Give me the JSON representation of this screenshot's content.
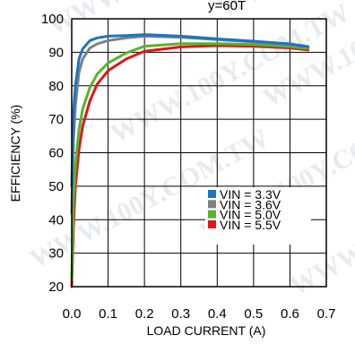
{
  "chart_data": {
    "type": "line",
    "title_fragment": "y=60T",
    "xlabel": "LOAD CURRENT (A)",
    "ylabel": "EFFICIENCY (%)",
    "xlim": [
      0.0,
      0.7
    ],
    "ylim": [
      20,
      100
    ],
    "x_ticks": [
      "0.0",
      "0.1",
      "0.2",
      "0.3",
      "0.4",
      "0.5",
      "0.6",
      "0.7"
    ],
    "y_ticks": [
      "20",
      "30",
      "40",
      "50",
      "60",
      "70",
      "80",
      "90",
      "100"
    ],
    "grid": true,
    "legend_position": "lower-right",
    "watermark": "WWW.100Y.COM.TW",
    "series": [
      {
        "name": "VIN = 3.3V",
        "color": "#1a75c2",
        "x": [
          0.0,
          0.005,
          0.01,
          0.02,
          0.03,
          0.05,
          0.07,
          0.1,
          0.15,
          0.2,
          0.3,
          0.4,
          0.5,
          0.6,
          0.65
        ],
        "y": [
          50,
          72,
          80,
          88,
          91,
          93.5,
          94.3,
          94.8,
          95.0,
          95.3,
          94.8,
          94.0,
          93.3,
          92.5,
          91.7
        ]
      },
      {
        "name": "VIN = 3.6V",
        "color": "#808080",
        "x": [
          0.0,
          0.005,
          0.01,
          0.02,
          0.03,
          0.05,
          0.07,
          0.1,
          0.15,
          0.2,
          0.3,
          0.4,
          0.5,
          0.6,
          0.65
        ],
        "y": [
          42,
          64,
          74,
          84,
          88,
          91.3,
          92.5,
          93.5,
          94.3,
          94.8,
          94.5,
          93.8,
          93.1,
          92.3,
          91.5
        ]
      },
      {
        "name": "VIN = 5.0V",
        "color": "#55b52a",
        "x": [
          0.0,
          0.005,
          0.01,
          0.02,
          0.03,
          0.05,
          0.07,
          0.1,
          0.15,
          0.2,
          0.3,
          0.4,
          0.5,
          0.6,
          0.65
        ],
        "y": [
          22,
          45,
          56,
          67,
          73,
          79.5,
          83.5,
          86.8,
          89.8,
          91.8,
          92.6,
          92.6,
          92.3,
          91.7,
          91.1
        ]
      },
      {
        "name": "VIN = 5.5V",
        "color": "#e0151b",
        "x": [
          0.0,
          0.005,
          0.01,
          0.02,
          0.03,
          0.05,
          0.07,
          0.1,
          0.15,
          0.2,
          0.3,
          0.4,
          0.5,
          0.6,
          0.65
        ],
        "y": [
          20,
          38,
          50,
          61,
          68,
          75.5,
          80.5,
          84.5,
          88,
          90.3,
          91.6,
          92.0,
          91.8,
          91.3,
          90.7
        ]
      }
    ]
  }
}
